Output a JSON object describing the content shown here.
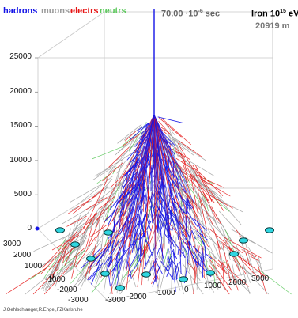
{
  "legend": {
    "hadrons": {
      "text": "hadrons",
      "color": "#1414e6"
    },
    "muons": {
      "text": "muons",
      "color": "#9a9a9a"
    },
    "electrons": {
      "text": "electrs",
      "color": "#e61414"
    },
    "neutrons": {
      "text": "neutrs",
      "color": "#5ac85a"
    }
  },
  "header": {
    "time_value": "70.00",
    "time_mult": "·10",
    "time_exp": "-6",
    "time_unit": "sec",
    "primary": "Iron",
    "primary_base": "10",
    "primary_exp": "15",
    "primary_unit": "eV",
    "height": "20919 m"
  },
  "axes": {
    "z_ticks": [
      "25000",
      "20000",
      "15000",
      "10000",
      "5000",
      "0"
    ],
    "y_ticks": [
      "3000",
      "2000",
      "1000",
      "0",
      "-1000",
      "-2000",
      "-3000"
    ],
    "x_ticks": [
      "-3000",
      "-2000",
      "-1000",
      "0",
      "1000",
      "2000",
      "3000"
    ]
  },
  "detectors": {
    "count": 12,
    "color": "#2fd6e0"
  },
  "credit": "J.Oehlschlaeger,R.Engel,FZKarlsruhe"
}
